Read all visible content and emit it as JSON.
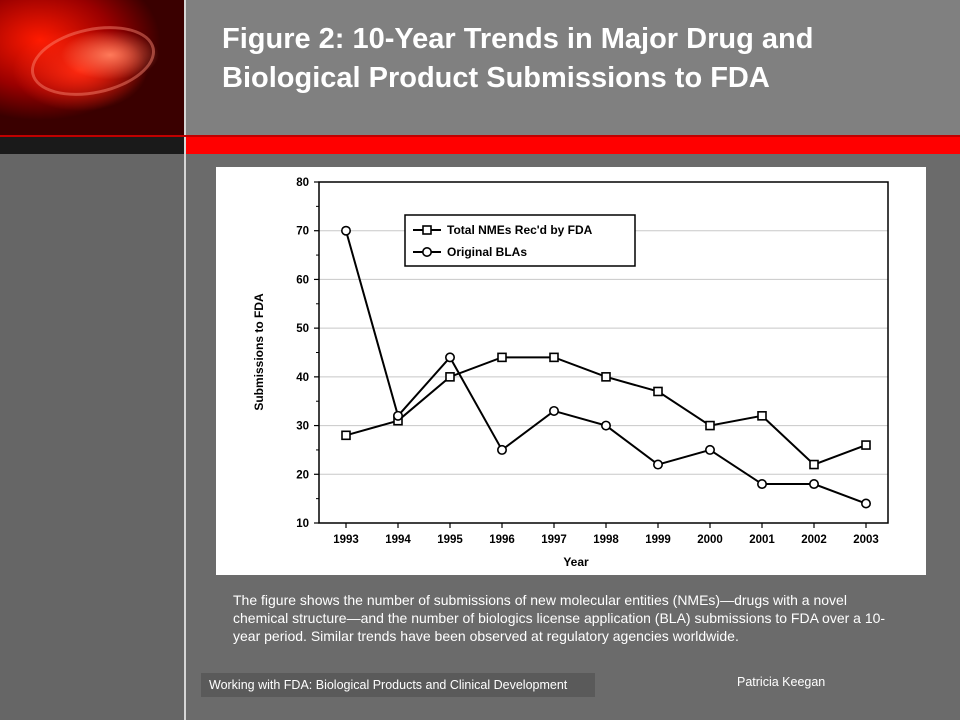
{
  "slide": {
    "title_line1": "Figure 2: 10-Year Trends in Major Drug and",
    "title_line2": "Biological Product Submissions to FDA",
    "caption": "The figure shows the number of submissions of new molecular entities (NMEs)—drugs with a novel chemical structure—and the number of biologics license application (BLA) submissions to FDA over a 10-year period.  Similar trends have been observed at regulatory agencies worldwide.",
    "footer_left": "Working with FDA: Biological Products and Clinical Development",
    "footer_right": "Patricia Keegan"
  },
  "colors": {
    "background": "#6b6b6b",
    "accent_red": "#ff0000",
    "line": "#000000"
  },
  "chart_data": {
    "type": "line",
    "x": [
      "1993",
      "1994",
      "1995",
      "1996",
      "1997",
      "1998",
      "1999",
      "2000",
      "2001",
      "2002",
      "2003"
    ],
    "series": [
      {
        "name": "Total NMEs Rec'd by FDA",
        "marker": "square",
        "values": [
          28,
          31,
          40,
          44,
          44,
          40,
          37,
          30,
          32,
          22,
          26
        ]
      },
      {
        "name": "Original BLAs",
        "marker": "circle",
        "values": [
          70,
          32,
          44,
          25,
          33,
          30,
          22,
          25,
          18,
          18,
          14
        ]
      }
    ],
    "xlabel": "Year",
    "ylabel": "Submissions to FDA",
    "ylim": [
      10,
      80
    ],
    "yticks": [
      10,
      20,
      30,
      40,
      50,
      60,
      70,
      80
    ],
    "grid": true,
    "legend_position": "top-left"
  }
}
